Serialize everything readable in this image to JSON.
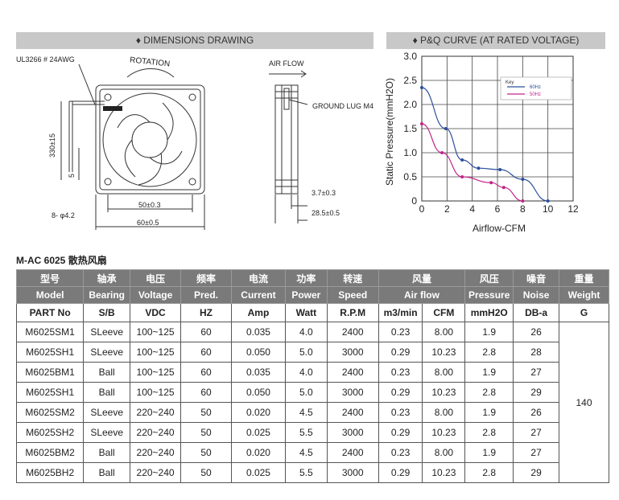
{
  "headers": {
    "dimensions": "♦ DIMENSIONS DRAWING",
    "curve": "♦ P&Q CURVE (AT RATED VOLTAGE)"
  },
  "drawing": {
    "wire_label": "UL3266 # 24AWG",
    "rotation_label": "ROTATION",
    "airflow_label": "AIR FLOW",
    "ground_label": "GROUND LUG M4",
    "dim_330": "330±15",
    "dim_5": "5",
    "dim_hole": "8- φ4.2",
    "dim_50": "50±0.3",
    "dim_60": "60±0.5",
    "dim_3_7": "3.7±0.3",
    "dim_28_5": "28.5±0.5"
  },
  "chart_data": {
    "type": "line",
    "xlabel": "Airflow-CFM",
    "ylabel": "Static Pressure(mmH2O)",
    "xlim": [
      0,
      12
    ],
    "ylim": [
      0,
      3.0
    ],
    "x_ticks": [
      "0",
      "2",
      "4",
      "6",
      "8",
      "10",
      "12"
    ],
    "y_ticks": [
      "0",
      "0.5",
      "1.0",
      "1.5",
      "2.0",
      "2.5",
      "3.0"
    ],
    "legend_title": "Key",
    "legend_position": "top-right",
    "grid": true,
    "series": [
      {
        "name": "60Hz",
        "color": "#2b4f9a",
        "x": [
          0,
          1.9,
          3.2,
          4.5,
          6.2,
          8,
          10
        ],
        "y": [
          2.35,
          1.5,
          0.85,
          0.68,
          0.65,
          0.45,
          0
        ]
      },
      {
        "name": "50Hz",
        "color": "#c2248a",
        "x": [
          0,
          1.6,
          3.2,
          5.5,
          6.5,
          8
        ],
        "y": [
          1.6,
          1.0,
          0.5,
          0.38,
          0.28,
          0
        ]
      }
    ]
  },
  "table": {
    "title": "M-AC 6025 散热风扇",
    "head_cn": [
      "型号",
      "轴承",
      "电压",
      "频率",
      "电流",
      "功率",
      "转速",
      "风量",
      "风压",
      "噪音",
      "重量"
    ],
    "head_en": [
      "Model",
      "Bearing",
      "Voltage",
      "Pred.",
      "Current",
      "Power",
      "Speed",
      "Air flow",
      "Pressure",
      "Noise",
      "Weight"
    ],
    "units": [
      "PART No",
      "S/B",
      "VDC",
      "HZ",
      "Amp",
      "Watt",
      "R.P.M",
      "m3/min",
      "CFM",
      "mmH2O",
      "DB-a",
      "G"
    ],
    "rows": [
      [
        "M6025SM1",
        "SLeeve",
        "100~125",
        "60",
        "0.035",
        "4.0",
        "2400",
        "0.23",
        "8.00",
        "1.9",
        "26"
      ],
      [
        "M6025SH1",
        "SLeeve",
        "100~125",
        "60",
        "0.050",
        "5.0",
        "3000",
        "0.29",
        "10.23",
        "2.8",
        "28"
      ],
      [
        "M6025BM1",
        "Ball",
        "100~125",
        "60",
        "0.035",
        "4.0",
        "2400",
        "0.23",
        "8.00",
        "1.9",
        "27"
      ],
      [
        "M6025SH1",
        "Ball",
        "100~125",
        "60",
        "0.050",
        "5.0",
        "3000",
        "0.29",
        "10.23",
        "2.8",
        "29"
      ],
      [
        "M6025SM2",
        "SLeeve",
        "220~240",
        "50",
        "0.020",
        "4.5",
        "2400",
        "0.23",
        "8.00",
        "1.9",
        "26"
      ],
      [
        "M6025SH2",
        "SLeeve",
        "220~240",
        "50",
        "0.025",
        "5.5",
        "3000",
        "0.29",
        "10.23",
        "2.8",
        "27"
      ],
      [
        "M6025BM2",
        "Ball",
        "220~240",
        "50",
        "0.020",
        "4.5",
        "2400",
        "0.23",
        "8.00",
        "1.9",
        "27"
      ],
      [
        "M6025BH2",
        "Ball",
        "220~240",
        "50",
        "0.025",
        "5.5",
        "3000",
        "0.29",
        "10.23",
        "2.8",
        "29"
      ]
    ],
    "weight": "140"
  }
}
